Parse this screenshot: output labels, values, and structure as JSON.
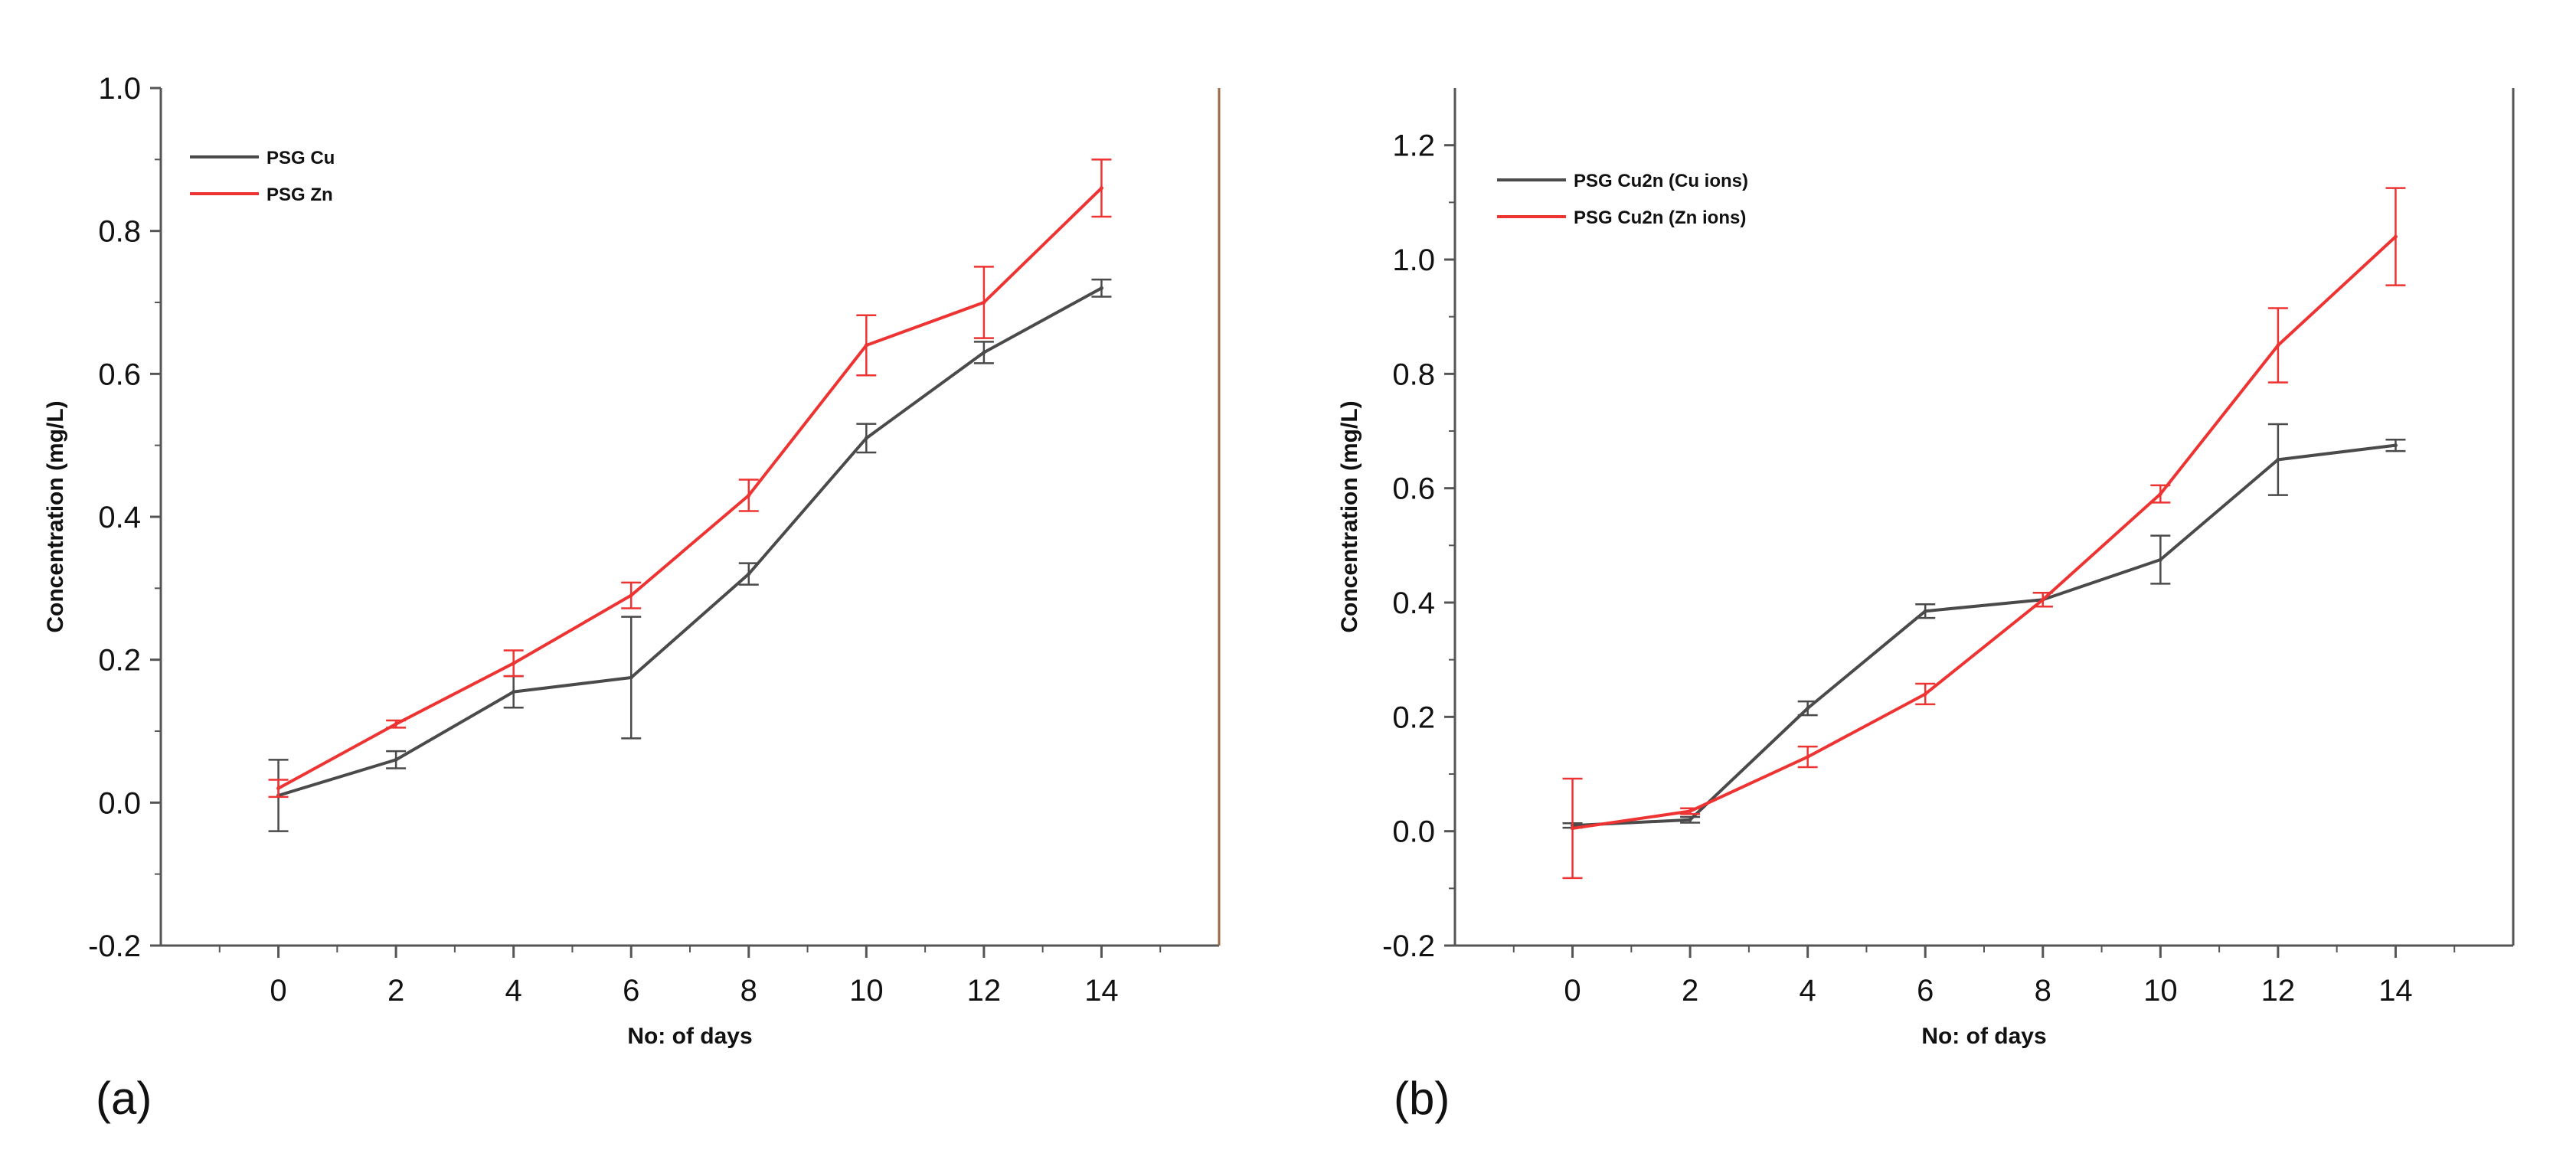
{
  "chart_data": [
    {
      "type": "line",
      "panel_label": "(a)",
      "title": "",
      "xlabel": "No: of days",
      "ylabel": "Concentration (mg/L)",
      "xlim": [
        -2,
        16
      ],
      "ylim": [
        -0.2,
        1.0
      ],
      "xticks": [
        0,
        2,
        4,
        6,
        8,
        10,
        12,
        14
      ],
      "xtick_labels": [
        "0",
        "2",
        "4",
        "6",
        "8",
        "10",
        "12",
        "14"
      ],
      "yticks": [
        -0.2,
        0.0,
        0.2,
        0.4,
        0.6,
        0.8,
        1.0
      ],
      "ytick_labels": [
        "-0.2",
        "0.0",
        "0.2",
        "0.4",
        "0.6",
        "0.8",
        "1.0"
      ],
      "grid": false,
      "legend_position": "top-left",
      "x": [
        0,
        2,
        4,
        6,
        8,
        10,
        12,
        14
      ],
      "series": [
        {
          "name": "PSG Cu",
          "color": "#4a4a4a",
          "values": [
            0.01,
            0.06,
            0.155,
            0.175,
            0.32,
            0.51,
            0.63,
            0.72
          ],
          "errors": [
            0.05,
            0.012,
            0.022,
            0.085,
            0.015,
            0.02,
            0.015,
            0.012
          ]
        },
        {
          "name": "PSG Zn",
          "color": "#ee3333",
          "values": [
            0.02,
            0.11,
            0.195,
            0.29,
            0.43,
            0.64,
            0.7,
            0.86
          ],
          "errors": [
            0.012,
            0.005,
            0.018,
            0.018,
            0.022,
            0.042,
            0.05,
            0.04
          ]
        }
      ]
    },
    {
      "type": "line",
      "panel_label": "(b)",
      "title": "",
      "xlabel": "No: of days",
      "ylabel": "Concentration (mg/L)",
      "xlim": [
        -2,
        16
      ],
      "ylim": [
        -0.2,
        1.3
      ],
      "xticks": [
        0,
        2,
        4,
        6,
        8,
        10,
        12,
        14
      ],
      "xtick_labels": [
        "0",
        "2",
        "4",
        "6",
        "8",
        "10",
        "12",
        "14"
      ],
      "yticks": [
        -0.2,
        0.0,
        0.2,
        0.4,
        0.6,
        0.8,
        1.0,
        1.2
      ],
      "ytick_labels": [
        "-0.2",
        "0.0",
        "0.2",
        "0.4",
        "0.6",
        "0.8",
        "1.0",
        "1.2"
      ],
      "grid": false,
      "legend_position": "top-left",
      "x": [
        0,
        2,
        4,
        6,
        8,
        10,
        12,
        14
      ],
      "series": [
        {
          "name": "PSG Cu2n (Cu ions)",
          "color": "#4a4a4a",
          "values": [
            0.01,
            0.02,
            0.215,
            0.385,
            0.405,
            0.475,
            0.65,
            0.675
          ],
          "errors": [
            0.004,
            0.005,
            0.012,
            0.012,
            0.012,
            0.042,
            0.062,
            0.01
          ]
        },
        {
          "name": "PSG Cu2n (Zn ions)",
          "color": "#ee3333",
          "values": [
            0.005,
            0.035,
            0.13,
            0.24,
            0.405,
            0.59,
            0.85,
            1.04
          ],
          "errors": [
            0.087,
            0.005,
            0.018,
            0.018,
            0.012,
            0.015,
            0.065,
            0.085
          ]
        }
      ]
    }
  ]
}
